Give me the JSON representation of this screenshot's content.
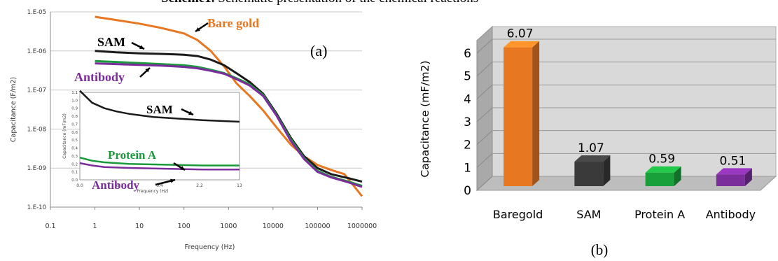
{
  "caption": {
    "bold": "Scheme1.",
    "text": " Schematic presentation of the chemical reactions"
  },
  "chart_data": [
    {
      "type": "line",
      "panel_label": "(a)",
      "xlabel": "Frequency (Hz)",
      "ylabel": "Capacitance (F/m2)",
      "xscale": "log",
      "yscale": "log",
      "xlim": [
        0.1,
        1000000
      ],
      "ylim": [
        1e-10,
        1e-05
      ],
      "x_ticks": [
        "0.1",
        "1",
        "10",
        "100",
        "1000",
        "10000",
        "100000",
        "1000000"
      ],
      "y_ticks": [
        "1.E-10",
        "1.E-09",
        "1.E-08",
        "1.E-07",
        "1.E-06",
        "1.E-05"
      ],
      "grid": "horizontal",
      "series": [
        {
          "name": "Bare gold",
          "color": "#E87722",
          "x": [
            1,
            3,
            10,
            30,
            100,
            200,
            400,
            800,
            1500,
            3000,
            6000,
            12000,
            25000,
            50000,
            100000,
            200000,
            400000,
            1000000
          ],
          "y": [
            7.5e-06,
            6.2e-06,
            5e-06,
            3.9e-06,
            2.8e-06,
            1.9e-06,
            1e-06,
            4e-07,
            1.5e-07,
            7e-08,
            3e-08,
            1.1e-08,
            4e-09,
            2e-09,
            1.2e-09,
            9e-10,
            7e-10,
            1.9e-10
          ]
        },
        {
          "name": "SAM",
          "color": "#1a1a1a",
          "x": [
            1,
            3,
            10,
            30,
            100,
            200,
            400,
            800,
            1500,
            3000,
            6000,
            12000,
            25000,
            50000,
            100000,
            200000,
            500000,
            1000000
          ],
          "y": [
            1e-06,
            9.2e-07,
            8.7e-07,
            8.4e-07,
            8e-07,
            7.4e-07,
            6e-07,
            4.3e-07,
            2.7e-07,
            1.6e-07,
            8e-08,
            2.5e-08,
            6e-09,
            2e-09,
            1e-09,
            7e-10,
            5.5e-10,
            4.5e-10
          ]
        },
        {
          "name": "Protein A",
          "color": "#1a9a3a",
          "x": [
            1,
            3,
            10,
            30,
            100,
            200,
            400,
            800,
            1500,
            3000,
            6000,
            12000,
            25000,
            50000,
            100000,
            200000,
            500000,
            1000000
          ],
          "y": [
            5.5e-07,
            5.2e-07,
            4.9e-07,
            4.6e-07,
            4.3e-07,
            3.9e-07,
            3.3e-07,
            2.7e-07,
            2e-07,
            1.4e-07,
            7.5e-08,
            2.3e-08,
            5.5e-09,
            1.8e-09,
            8.5e-10,
            6e-10,
            4.5e-10,
            3.5e-10
          ]
        },
        {
          "name": "Antibody",
          "color": "#7b2d9b",
          "x": [
            1,
            3,
            10,
            30,
            100,
            200,
            400,
            800,
            1500,
            3000,
            6000,
            12000,
            25000,
            50000,
            100000,
            200000,
            500000,
            1000000
          ],
          "y": [
            4.8e-07,
            4.6e-07,
            4.4e-07,
            4.2e-07,
            3.9e-07,
            3.6e-07,
            3.1e-07,
            2.6e-07,
            1.9e-07,
            1.3e-07,
            7e-08,
            2.2e-08,
            5e-09,
            1.7e-09,
            8e-10,
            5.8e-10,
            4.3e-10,
            3.3e-10
          ]
        }
      ],
      "annotations": [
        "Bare gold",
        "SAM",
        "Antibody"
      ],
      "inset": {
        "xlabel": "Frequency (Hz)",
        "ylabel": "Capacitance (mF/m2)",
        "x_ticks": [
          "0.0",
          "0.1",
          "0.4",
          "2.2",
          "13"
        ],
        "y_ticks": [
          "0.0",
          "0.1",
          "0.2",
          "0.3",
          "0.4",
          "0.5",
          "0.6",
          "0.7",
          "0.8",
          "0.9",
          "1.0",
          "1.1"
        ],
        "annotations": [
          "SAM",
          "Protein A",
          "Antibody"
        ],
        "series": [
          {
            "name": "SAM",
            "color": "#1a1a1a",
            "x": [
              0,
              1,
              2,
              3,
              4,
              5,
              6,
              8,
              10,
              13
            ],
            "y": [
              1.12,
              0.97,
              0.9,
              0.86,
              0.83,
              0.81,
              0.79,
              0.77,
              0.75,
              0.73
            ]
          },
          {
            "name": "Protein A",
            "color": "#1a9a3a",
            "x": [
              0,
              1,
              2,
              4,
              7,
              10,
              13
            ],
            "y": [
              0.28,
              0.24,
              0.22,
              0.2,
              0.19,
              0.18,
              0.18
            ]
          },
          {
            "name": "Antibody",
            "color": "#7b2d9b",
            "x": [
              0,
              1,
              2,
              4,
              7,
              10,
              13
            ],
            "y": [
              0.21,
              0.18,
              0.16,
              0.15,
              0.14,
              0.13,
              0.13
            ]
          }
        ]
      }
    },
    {
      "type": "bar",
      "style": "3d",
      "panel_label": "(b)",
      "ylabel": "Capacitance (mF/m2)",
      "ylim": [
        0,
        6
      ],
      "y_ticks": [
        "0",
        "1",
        "2",
        "3",
        "4",
        "5",
        "6"
      ],
      "categories": [
        "Baregold",
        "SAM",
        "Protein A",
        "Antibody"
      ],
      "values": [
        6.07,
        1.07,
        0.59,
        0.51
      ],
      "value_labels": [
        "6.07",
        "1.07",
        "0.59",
        "0.51"
      ],
      "colors": [
        "#E87722",
        "#3a3a3a",
        "#1aa03a",
        "#7b2d9b"
      ]
    }
  ]
}
